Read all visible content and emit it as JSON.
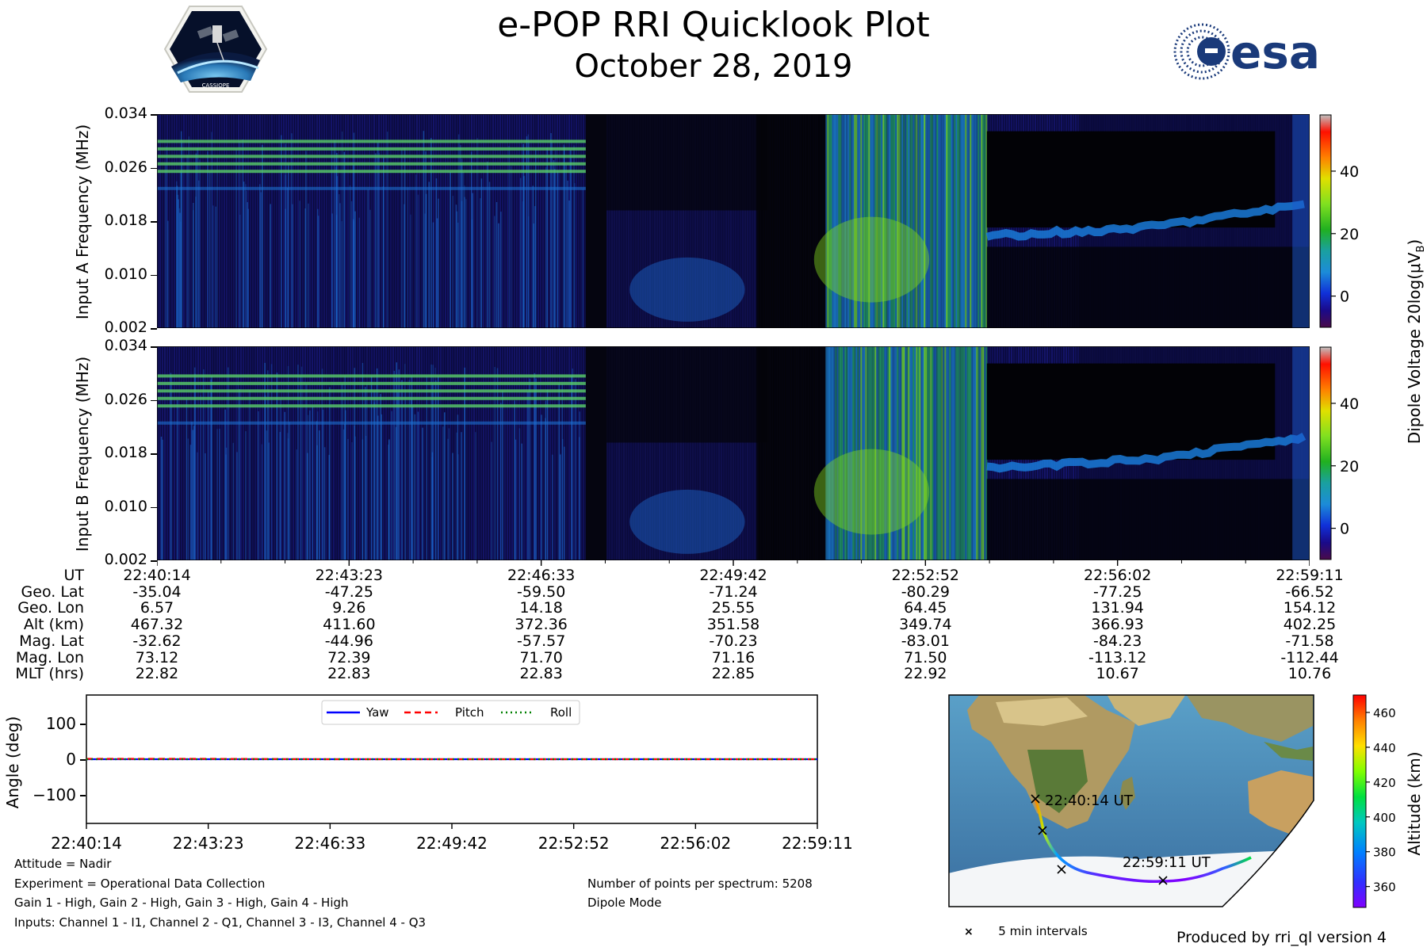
{
  "header": {
    "title": "e-POP RRI Quicklook Plot",
    "date": "October 28, 2019",
    "left_logo": "cassiope-mission-logo",
    "left_logo_text": "CASSIOPE",
    "right_logo": "esa-logo",
    "right_logo_text": "esa"
  },
  "spectrograms": {
    "panels": [
      {
        "ylabel": "Input A Frequency (MHz)"
      },
      {
        "ylabel": "Input B Frequency (MHz)"
      }
    ],
    "yticks": [
      "0.034",
      "0.026",
      "0.018",
      "0.010",
      "0.002"
    ],
    "colorbar": {
      "label": "Dipole Voltage 20log(μV",
      "label_sub": "B",
      "label_end": ")",
      "ticks": [
        "40",
        "20",
        "0"
      ],
      "colormap": [
        "#4a0a4a",
        "#1a0a8a",
        "#1030d8",
        "#1c8cd8",
        "#1aa0a0",
        "#20b020",
        "#80e020",
        "#e0e000",
        "#ff8000",
        "#ff1000",
        "#c0c0c0"
      ]
    }
  },
  "chart_data": [
    {
      "type": "heatmap",
      "title": "",
      "xlabel": "",
      "ylabel": "Input A Frequency (MHz)",
      "ylim": [
        0.002,
        0.034
      ],
      "x": [
        "22:40:14",
        "22:43:23",
        "22:46:33",
        "22:49:42",
        "22:52:52",
        "22:56:02",
        "22:59:11"
      ],
      "zlabel": "Dipole Voltage 20log(μV_B)",
      "zlim": [
        -10,
        58
      ]
    },
    {
      "type": "heatmap",
      "title": "",
      "xlabel": "",
      "ylabel": "Input B Frequency (MHz)",
      "ylim": [
        0.002,
        0.034
      ],
      "x": [
        "22:40:14",
        "22:43:23",
        "22:46:33",
        "22:49:42",
        "22:52:52",
        "22:56:02",
        "22:59:11"
      ],
      "zlabel": "Dipole Voltage 20log(μV_B)",
      "zlim": [
        -10,
        58
      ]
    },
    {
      "type": "line",
      "title": "",
      "xlabel": "",
      "ylabel": "Angle (deg)",
      "ylim": [
        -180,
        180
      ],
      "yticks": [
        "100",
        "0",
        "−100"
      ],
      "categories": [
        "22:40:14",
        "22:43:23",
        "22:46:33",
        "22:49:42",
        "22:52:52",
        "22:56:02",
        "22:59:11"
      ],
      "series": [
        {
          "name": "Yaw",
          "color": "#0000ff",
          "style": "solid",
          "values": [
            0,
            0,
            0,
            0,
            0,
            0,
            0
          ]
        },
        {
          "name": "Pitch",
          "color": "#ff0000",
          "style": "dashed",
          "values": [
            1,
            1,
            0,
            0,
            0,
            0,
            0
          ]
        },
        {
          "name": "Roll",
          "color": "#008000",
          "style": "dotted",
          "values": [
            0,
            0,
            0,
            0,
            0,
            0,
            0
          ]
        }
      ],
      "legend": "top-center",
      "grid": false
    }
  ],
  "ephemeris": {
    "rows": [
      {
        "label": "UT",
        "values": [
          "22:40:14",
          "22:43:23",
          "22:46:33",
          "22:49:42",
          "22:52:52",
          "22:56:02",
          "22:59:11"
        ]
      },
      {
        "label": "Geo. Lat",
        "values": [
          "-35.04",
          "-47.25",
          "-59.50",
          "-71.24",
          "-80.29",
          "-77.25",
          "-66.52"
        ]
      },
      {
        "label": "Geo. Lon",
        "values": [
          "6.57",
          "9.26",
          "14.18",
          "25.55",
          "64.45",
          "131.94",
          "154.12"
        ]
      },
      {
        "label": "Alt (km)",
        "values": [
          "467.32",
          "411.60",
          "372.36",
          "351.58",
          "349.74",
          "366.93",
          "402.25"
        ]
      },
      {
        "label": "Mag. Lat",
        "values": [
          "-32.62",
          "-44.96",
          "-57.57",
          "-70.23",
          "-83.01",
          "-84.23",
          "-71.58"
        ]
      },
      {
        "label": "Mag. Lon",
        "values": [
          "73.12",
          "72.39",
          "71.70",
          "71.16",
          "71.50",
          "-113.12",
          "-112.44"
        ]
      },
      {
        "label": "MLT (hrs)",
        "values": [
          "22.82",
          "22.83",
          "22.83",
          "22.85",
          "22.92",
          "10.67",
          "10.76"
        ]
      }
    ]
  },
  "attitude": {
    "ylabel": "Angle (deg)",
    "yticks": [
      "100",
      "0",
      "−100"
    ],
    "xticks": [
      "22:40:14",
      "22:43:23",
      "22:46:33",
      "22:49:42",
      "22:52:52",
      "22:56:02",
      "22:59:11"
    ],
    "legend": [
      "Yaw",
      "Pitch",
      "Roll"
    ]
  },
  "info": {
    "attitude_mode": "Attitude = Nadir",
    "experiment": "Experiment = Operational Data Collection",
    "gains": "Gain 1 - High, Gain 2 - High, Gain 3 - High, Gain 4 - High",
    "inputs": "Inputs: Channel 1 - I1, Channel 2 - Q1, Channel 3 - I3, Channel 4 - Q3",
    "points": "Number of points per spectrum: 5208",
    "mode": "Dipole Mode"
  },
  "map": {
    "start_label": "22:40:14 UT",
    "end_label": "22:59:11 UT",
    "marker_legend": "5 min intervals",
    "colorbar_label": "Altitude (km)",
    "colorbar_ticks": [
      "460",
      "440",
      "420",
      "400",
      "380",
      "360"
    ],
    "colormap": [
      "#8000ff",
      "#3030ff",
      "#0080ff",
      "#00c8c0",
      "#00e040",
      "#80ff00",
      "#ffe000",
      "#ff8000",
      "#ff0000"
    ]
  },
  "footer": {
    "produced_by": "Produced by rri_ql version 4"
  }
}
